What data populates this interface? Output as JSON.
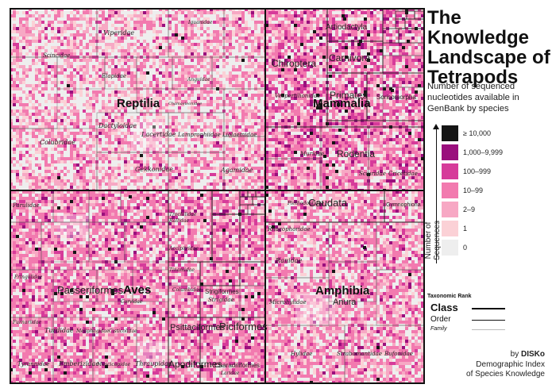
{
  "header": {
    "title": "The Knowledge Landscape of Tetrapods",
    "subtitle": "Number of sequenced nucleotides available in GenBank by species"
  },
  "legend": {
    "axis_label": "Number of Sequences",
    "items": [
      {
        "label": "≥ 10,000",
        "color": "#151515"
      },
      {
        "label": "1,000–9,999",
        "color": "#9a0f7d"
      },
      {
        "label": "100–999",
        "color": "#d63b9a"
      },
      {
        "label": "10–99",
        "color": "#f27aaf"
      },
      {
        "label": "2–9",
        "color": "#f7a8c4"
      },
      {
        "label": "1",
        "color": "#fbd1d6"
      },
      {
        "label": "0",
        "color": "#eeeeee"
      }
    ]
  },
  "rank_legend": {
    "heading": "Taxonomic Rank",
    "class_label": "Class",
    "order_label": "Order",
    "family_label": "Family"
  },
  "credit": {
    "line1_prefix": "by",
    "line1_name": "DISKo",
    "line2": "Demographic Index",
    "line3": "of Species Knowledge"
  },
  "chart_data": {
    "type": "treemap",
    "value_meaning": "number of species per taxon (area); cell color = number of sequences per species",
    "classes": [
      {
        "name": "Reptilia",
        "orders": [],
        "families": [
          "Viperidae",
          "Scincidae",
          "Elapidae",
          "Iguanidae",
          "Anguidae",
          "Chamaeleonidae",
          "Dactyloidae",
          "Colubridae",
          "Lacertidae",
          "Lamprophiidae",
          "Liolaemidae",
          "Gekkonidae",
          "Agamidae"
        ]
      },
      {
        "name": "Mammalia",
        "orders": [
          "Chiroptera",
          "Artiodactyla",
          "Carnivora",
          "Primates",
          "Soricomorpha",
          "Rodentia"
        ],
        "families": [
          "Vespertilionidae",
          "Muridae",
          "Sciuridae",
          "Cricetidae"
        ]
      },
      {
        "name": "Aves",
        "orders": [
          "Passeriformes",
          "Psittaciformes",
          "Piciformes",
          "Apodiformes",
          "Strigiformes",
          "Charadriiformes"
        ],
        "families": [
          "Parulidae",
          "Fringillidae",
          "Furnariidae",
          "Turdidae",
          "Meliphagidae",
          "Cisticolidae",
          "Tyrannidae",
          "Emberizidae",
          "Muscicapidae",
          "Thraupidae",
          "Rallidae",
          "Trochilidae",
          "Laridae",
          "Columbidae",
          "Strigidae",
          "Accipitridae",
          "Tinamidae",
          "Corvidae"
        ]
      },
      {
        "name": "Amphibia",
        "orders": [
          "Caudata",
          "Anura",
          "Gymnophiona"
        ],
        "families": [
          "Plethodontidae",
          "Rhacophoridae",
          "Ranidae",
          "Microhylidae",
          "Hylidae",
          "Strabomantidae",
          "Bufonidae"
        ]
      }
    ]
  }
}
